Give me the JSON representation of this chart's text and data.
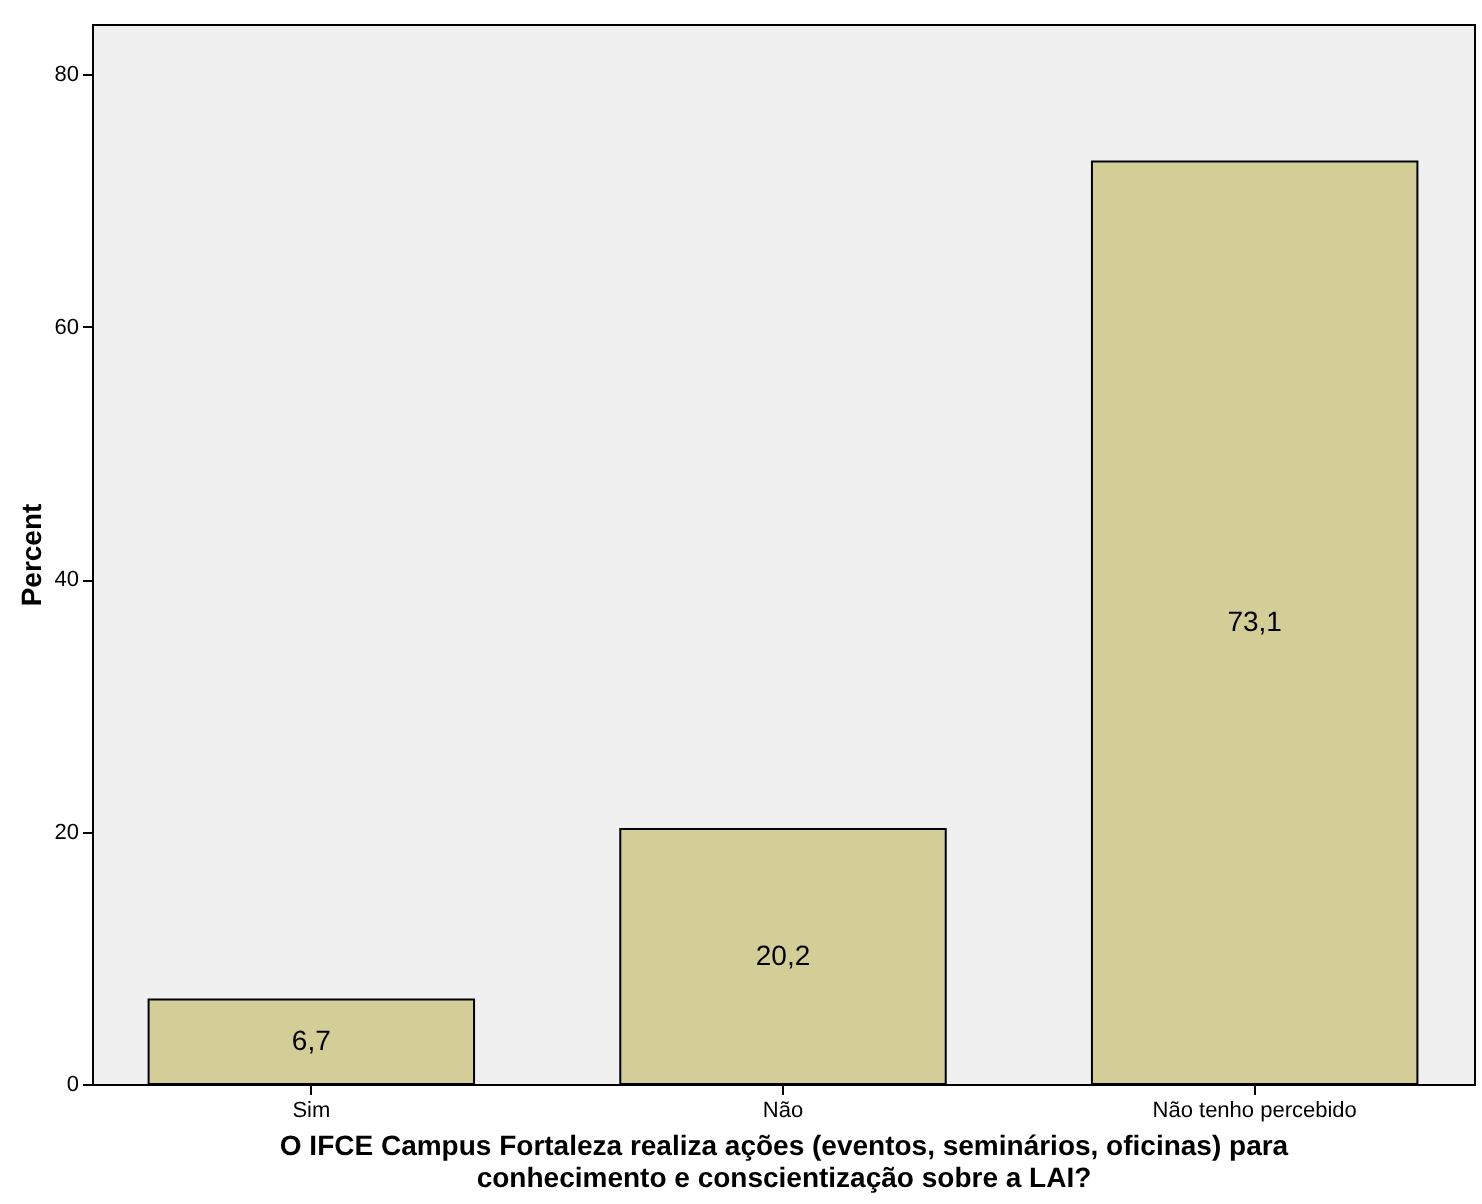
{
  "chart_data": {
    "type": "bar",
    "xlabel": "O IFCE Campus Fortaleza realiza ações (eventos, seminários, oficinas) para conhecimento e conscientização sobre a LAI?",
    "ylabel": "Percent",
    "categories": [
      "Sim",
      "Não",
      "Não tenho percebido"
    ],
    "values": [
      6.7,
      20.2,
      73.1
    ],
    "value_labels": [
      "6,7",
      "20,2",
      "73,1"
    ],
    "color": "#d3ce97",
    "ylim": [
      0,
      84
    ],
    "yticks": [
      0,
      20,
      40,
      60,
      80
    ],
    "grid": false
  }
}
